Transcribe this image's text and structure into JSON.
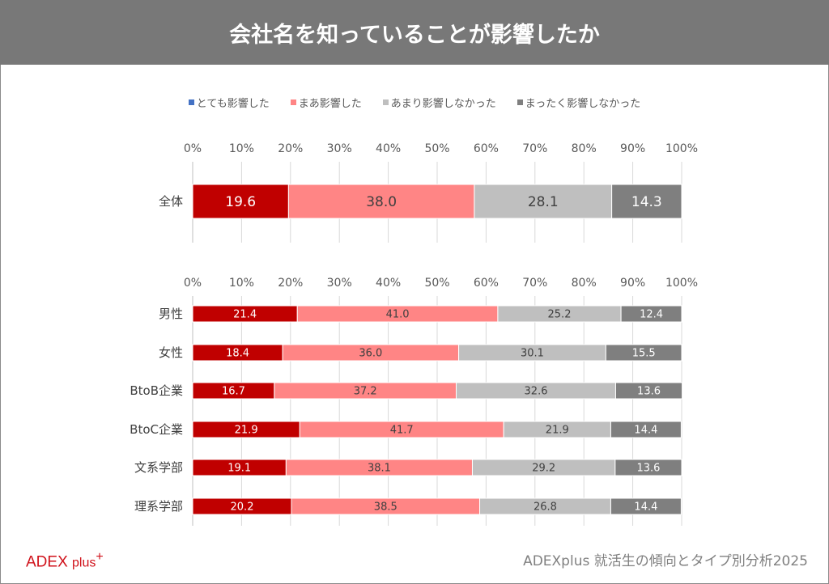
{
  "title": "会社名を知っていることが影響したか",
  "logo": "ADEX plus+",
  "footer": "ADEXplus 就活生の傾向とタイプ別分析2025",
  "chart_data": [
    {
      "type": "bar",
      "stacked": true,
      "orientation": "horizontal",
      "legend": [
        "とても影響した",
        "まあ影響した",
        "あまり影響しなかった",
        "まったく影響しなかった"
      ],
      "legend_colors": [
        "#4472c4",
        "#ff8585",
        "#bfbfbf",
        "#7f7f7f"
      ],
      "bar_colors": [
        "#c00000",
        "#ff8585",
        "#bfbfbf",
        "#7f7f7f"
      ],
      "xlim": [
        0,
        100
      ],
      "xticks": [
        "0%",
        "10%",
        "20%",
        "30%",
        "40%",
        "50%",
        "60%",
        "70%",
        "80%",
        "90%",
        "100%"
      ],
      "categories": [
        "全体"
      ],
      "series": [
        {
          "name": "とても影響した",
          "values": [
            19.6
          ]
        },
        {
          "name": "まあ影響した",
          "values": [
            38.0
          ]
        },
        {
          "name": "あまり影響しなかった",
          "values": [
            28.1
          ]
        },
        {
          "name": "まったく影響しなかった",
          "values": [
            14.3
          ]
        }
      ]
    },
    {
      "type": "bar",
      "stacked": true,
      "orientation": "horizontal",
      "xlim": [
        0,
        100
      ],
      "xticks": [
        "0%",
        "10%",
        "20%",
        "30%",
        "40%",
        "50%",
        "60%",
        "70%",
        "80%",
        "90%",
        "100%"
      ],
      "categories": [
        "男性",
        "女性",
        "BtoB企業",
        "BtoC企業",
        "文系学部",
        "理系学部"
      ],
      "series": [
        {
          "name": "とても影響した",
          "values": [
            21.4,
            18.4,
            16.7,
            21.9,
            19.1,
            20.2
          ]
        },
        {
          "name": "まあ影響した",
          "values": [
            41.0,
            36.0,
            37.2,
            41.7,
            38.1,
            38.5
          ]
        },
        {
          "name": "あまり影響しなかった",
          "values": [
            25.2,
            30.1,
            32.6,
            21.9,
            29.2,
            26.8
          ]
        },
        {
          "name": "まったく影響しなかった",
          "values": [
            12.4,
            15.5,
            13.6,
            14.4,
            13.6,
            14.4
          ]
        }
      ]
    }
  ]
}
